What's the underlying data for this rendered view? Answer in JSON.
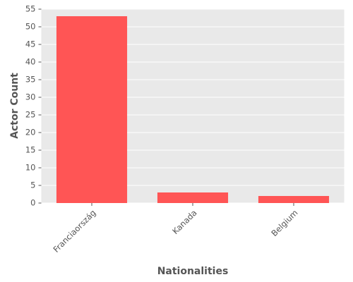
{
  "chart_data": {
    "type": "bar",
    "x_label": "Nationalities",
    "y_label": "Actor Count",
    "categories": [
      "Franciaország",
      "Kanada",
      "Belgium"
    ],
    "values": [
      53,
      3,
      2
    ],
    "color": "#ff5555",
    "ylim": [
      0,
      55
    ],
    "yticks": [
      0,
      5,
      10,
      15,
      20,
      25,
      30,
      35,
      40,
      45,
      50,
      55
    ],
    "grid": true
  }
}
